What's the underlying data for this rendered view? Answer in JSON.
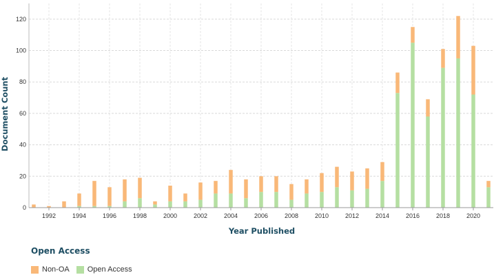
{
  "chart_data": {
    "type": "bar",
    "stacked": true,
    "title": "",
    "xlabel": "Year Published",
    "ylabel": "Document Count",
    "ylim": [
      0,
      130
    ],
    "yticks": [
      0,
      20,
      40,
      60,
      80,
      100,
      120
    ],
    "xticks": [
      1992,
      1994,
      1996,
      1998,
      2000,
      2002,
      2004,
      2006,
      2008,
      2010,
      2012,
      2014,
      2016,
      2018,
      2020
    ],
    "grid": true,
    "legend_position": "bottom-left",
    "legend_title": "Open Access",
    "categories": [
      1991,
      1992,
      1993,
      1994,
      1995,
      1996,
      1997,
      1998,
      1999,
      2000,
      2001,
      2002,
      2003,
      2004,
      2005,
      2006,
      2007,
      2008,
      2009,
      2010,
      2011,
      2012,
      2013,
      2014,
      2015,
      2016,
      2017,
      2018,
      2019,
      2020,
      2021
    ],
    "series": [
      {
        "name": "Open Access",
        "color": "#b5dfa2",
        "values": [
          0,
          0,
          0,
          1,
          1,
          1,
          4,
          6,
          2,
          4,
          4,
          5,
          9,
          9,
          6,
          10,
          10,
          5,
          9,
          10,
          13,
          11,
          12,
          17,
          73,
          105,
          58,
          89,
          95,
          72,
          13
        ]
      },
      {
        "name": "Non-OA",
        "color": "#f9b878",
        "values": [
          2,
          1,
          4,
          8,
          16,
          12,
          14,
          13,
          2,
          10,
          5,
          11,
          8,
          15,
          12,
          10,
          10,
          10,
          9,
          12,
          13,
          12,
          13,
          12,
          13,
          10,
          11,
          12,
          27,
          31,
          4
        ]
      }
    ],
    "legend": [
      {
        "name": "Non-OA",
        "color": "#f9b878"
      },
      {
        "name": "Open Access",
        "color": "#b5dfa2"
      }
    ]
  }
}
